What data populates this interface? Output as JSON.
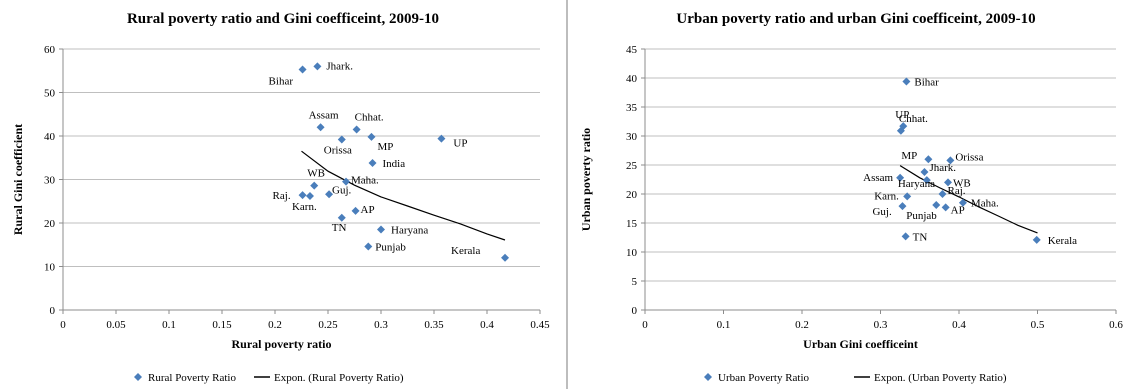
{
  "colors": {
    "marker": "#4a7ebb",
    "trend": "#000000",
    "grid": "#bfbfbf",
    "axis": "#8c8c8c"
  },
  "chart_data": [
    {
      "type": "scatter",
      "title": "Rural poverty ratio and Gini coefficeint, 2009-10",
      "xlabel": "Rural poverty ratio",
      "ylabel": "Rural Gini coefficient",
      "xlim": [
        0,
        0.45
      ],
      "ylim": [
        0,
        60
      ],
      "xticks": [
        "0",
        "0.05",
        "0.1",
        "0.15",
        "0.2",
        "0.25",
        "0.3",
        "0.35",
        "0.4",
        "0.45"
      ],
      "yticks": [
        "0",
        "10",
        "20",
        "30",
        "40",
        "50",
        "60"
      ],
      "grid": "horizontal",
      "legend": [
        "Rural Poverty Ratio",
        "Expon. (Rural Poverty Ratio)"
      ],
      "legend_position": "bottom",
      "points": [
        {
          "label": "Bihar",
          "x": 0.226,
          "y": 55.3
        },
        {
          "label": "Jhark.",
          "x": 0.24,
          "y": 56
        },
        {
          "label": "Assam",
          "x": 0.243,
          "y": 42
        },
        {
          "label": "Chhat.",
          "x": 0.277,
          "y": 41.5
        },
        {
          "label": "Orissa",
          "x": 0.263,
          "y": 39.2
        },
        {
          "label": "MP",
          "x": 0.291,
          "y": 39.8
        },
        {
          "label": "UP",
          "x": 0.357,
          "y": 39.4
        },
        {
          "label": "India",
          "x": 0.292,
          "y": 33.8
        },
        {
          "label": "WB",
          "x": 0.237,
          "y": 28.6
        },
        {
          "label": "Maha.",
          "x": 0.267,
          "y": 29.5
        },
        {
          "label": "Raj.",
          "x": 0.226,
          "y": 26.4
        },
        {
          "label": "Karn.",
          "x": 0.233,
          "y": 26.2
        },
        {
          "label": "Guj.",
          "x": 0.251,
          "y": 26.6
        },
        {
          "label": "AP",
          "x": 0.276,
          "y": 22.8
        },
        {
          "label": "TN",
          "x": 0.263,
          "y": 21.2
        },
        {
          "label": "Haryana",
          "x": 0.3,
          "y": 18.5
        },
        {
          "label": "Punjab",
          "x": 0.288,
          "y": 14.6
        },
        {
          "label": "Kerala",
          "x": 0.417,
          "y": 12
        }
      ],
      "trendline": {
        "type": "exponential",
        "x": [
          0.225,
          0.25,
          0.275,
          0.3,
          0.325,
          0.35,
          0.375,
          0.4,
          0.417
        ],
        "y": [
          36.5,
          31.9,
          28.7,
          26.0,
          23.9,
          21.8,
          19.8,
          17.5,
          16.1
        ]
      }
    },
    {
      "type": "scatter",
      "title": "Urban poverty ratio and urban Gini coefficeint, 2009-10",
      "xlabel": "Urban Gini coefficeint",
      "ylabel": "Urban poverty ratio",
      "xlim": [
        0,
        0.6
      ],
      "ylim": [
        0,
        45
      ],
      "xticks": [
        "0",
        "0.1",
        "0.2",
        "0.3",
        "0.4",
        "0.5",
        "0.6"
      ],
      "yticks": [
        "0",
        "5",
        "10",
        "15",
        "20",
        "25",
        "30",
        "35",
        "40",
        "45"
      ],
      "grid": "horizontal",
      "legend": [
        "Urban Poverty Ratio",
        "Expon. (Urban Poverty Ratio)"
      ],
      "legend_position": "bottom",
      "points": [
        {
          "label": "Bihar",
          "x": 0.333,
          "y": 39.4
        },
        {
          "label": "UP",
          "x": 0.329,
          "y": 31.7
        },
        {
          "label": "Chhat.",
          "x": 0.326,
          "y": 30.9
        },
        {
          "label": "MP",
          "x": 0.361,
          "y": 26
        },
        {
          "label": "Orissa",
          "x": 0.389,
          "y": 25.8
        },
        {
          "label": "Jhark.",
          "x": 0.356,
          "y": 23.8
        },
        {
          "label": "Assam",
          "x": 0.325,
          "y": 22.8
        },
        {
          "label": "WB",
          "x": 0.386,
          "y": 22
        },
        {
          "label": "Haryana",
          "x": 0.359,
          "y": 22.4
        },
        {
          "label": "Raj.",
          "x": 0.379,
          "y": 20
        },
        {
          "label": "Karn.",
          "x": 0.334,
          "y": 19.6
        },
        {
          "label": "Maha.",
          "x": 0.405,
          "y": 18.5
        },
        {
          "label": "Guj.",
          "x": 0.328,
          "y": 17.9
        },
        {
          "label": "Punjab",
          "x": 0.371,
          "y": 18.1
        },
        {
          "label": "AP",
          "x": 0.383,
          "y": 17.7
        },
        {
          "label": "TN",
          "x": 0.332,
          "y": 12.7
        },
        {
          "label": "Kerala",
          "x": 0.499,
          "y": 12.1
        }
      ],
      "trendline": {
        "type": "exponential",
        "x": [
          0.325,
          0.35,
          0.375,
          0.4,
          0.425,
          0.45,
          0.475,
          0.5
        ],
        "y": [
          24.9,
          22.8,
          21.1,
          19.5,
          17.8,
          16.2,
          14.6,
          13.3
        ]
      }
    }
  ]
}
